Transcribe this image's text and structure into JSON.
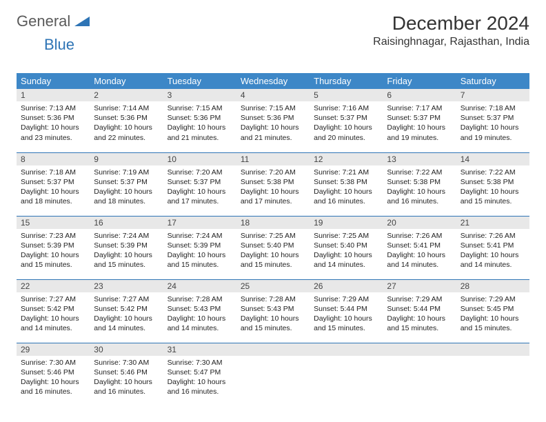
{
  "logo": {
    "part1": "General",
    "part2": "Blue"
  },
  "title": "December 2024",
  "location": "Raisinghnagar, Rajasthan, India",
  "colors": {
    "header_bg": "#3d87c7",
    "header_text": "#ffffff",
    "daynum_bg": "#e8e8e8",
    "border": "#2e74b5",
    "logo_gray": "#5a5a5a",
    "logo_blue": "#2e74b5"
  },
  "weekdays": [
    "Sunday",
    "Monday",
    "Tuesday",
    "Wednesday",
    "Thursday",
    "Friday",
    "Saturday"
  ],
  "weeks": [
    [
      {
        "n": "1",
        "sr": "Sunrise: 7:13 AM",
        "ss": "Sunset: 5:36 PM",
        "d1": "Daylight: 10 hours",
        "d2": "and 23 minutes."
      },
      {
        "n": "2",
        "sr": "Sunrise: 7:14 AM",
        "ss": "Sunset: 5:36 PM",
        "d1": "Daylight: 10 hours",
        "d2": "and 22 minutes."
      },
      {
        "n": "3",
        "sr": "Sunrise: 7:15 AM",
        "ss": "Sunset: 5:36 PM",
        "d1": "Daylight: 10 hours",
        "d2": "and 21 minutes."
      },
      {
        "n": "4",
        "sr": "Sunrise: 7:15 AM",
        "ss": "Sunset: 5:36 PM",
        "d1": "Daylight: 10 hours",
        "d2": "and 21 minutes."
      },
      {
        "n": "5",
        "sr": "Sunrise: 7:16 AM",
        "ss": "Sunset: 5:37 PM",
        "d1": "Daylight: 10 hours",
        "d2": "and 20 minutes."
      },
      {
        "n": "6",
        "sr": "Sunrise: 7:17 AM",
        "ss": "Sunset: 5:37 PM",
        "d1": "Daylight: 10 hours",
        "d2": "and 19 minutes."
      },
      {
        "n": "7",
        "sr": "Sunrise: 7:18 AM",
        "ss": "Sunset: 5:37 PM",
        "d1": "Daylight: 10 hours",
        "d2": "and 19 minutes."
      }
    ],
    [
      {
        "n": "8",
        "sr": "Sunrise: 7:18 AM",
        "ss": "Sunset: 5:37 PM",
        "d1": "Daylight: 10 hours",
        "d2": "and 18 minutes."
      },
      {
        "n": "9",
        "sr": "Sunrise: 7:19 AM",
        "ss": "Sunset: 5:37 PM",
        "d1": "Daylight: 10 hours",
        "d2": "and 18 minutes."
      },
      {
        "n": "10",
        "sr": "Sunrise: 7:20 AM",
        "ss": "Sunset: 5:37 PM",
        "d1": "Daylight: 10 hours",
        "d2": "and 17 minutes."
      },
      {
        "n": "11",
        "sr": "Sunrise: 7:20 AM",
        "ss": "Sunset: 5:38 PM",
        "d1": "Daylight: 10 hours",
        "d2": "and 17 minutes."
      },
      {
        "n": "12",
        "sr": "Sunrise: 7:21 AM",
        "ss": "Sunset: 5:38 PM",
        "d1": "Daylight: 10 hours",
        "d2": "and 16 minutes."
      },
      {
        "n": "13",
        "sr": "Sunrise: 7:22 AM",
        "ss": "Sunset: 5:38 PM",
        "d1": "Daylight: 10 hours",
        "d2": "and 16 minutes."
      },
      {
        "n": "14",
        "sr": "Sunrise: 7:22 AM",
        "ss": "Sunset: 5:38 PM",
        "d1": "Daylight: 10 hours",
        "d2": "and 15 minutes."
      }
    ],
    [
      {
        "n": "15",
        "sr": "Sunrise: 7:23 AM",
        "ss": "Sunset: 5:39 PM",
        "d1": "Daylight: 10 hours",
        "d2": "and 15 minutes."
      },
      {
        "n": "16",
        "sr": "Sunrise: 7:24 AM",
        "ss": "Sunset: 5:39 PM",
        "d1": "Daylight: 10 hours",
        "d2": "and 15 minutes."
      },
      {
        "n": "17",
        "sr": "Sunrise: 7:24 AM",
        "ss": "Sunset: 5:39 PM",
        "d1": "Daylight: 10 hours",
        "d2": "and 15 minutes."
      },
      {
        "n": "18",
        "sr": "Sunrise: 7:25 AM",
        "ss": "Sunset: 5:40 PM",
        "d1": "Daylight: 10 hours",
        "d2": "and 15 minutes."
      },
      {
        "n": "19",
        "sr": "Sunrise: 7:25 AM",
        "ss": "Sunset: 5:40 PM",
        "d1": "Daylight: 10 hours",
        "d2": "and 14 minutes."
      },
      {
        "n": "20",
        "sr": "Sunrise: 7:26 AM",
        "ss": "Sunset: 5:41 PM",
        "d1": "Daylight: 10 hours",
        "d2": "and 14 minutes."
      },
      {
        "n": "21",
        "sr": "Sunrise: 7:26 AM",
        "ss": "Sunset: 5:41 PM",
        "d1": "Daylight: 10 hours",
        "d2": "and 14 minutes."
      }
    ],
    [
      {
        "n": "22",
        "sr": "Sunrise: 7:27 AM",
        "ss": "Sunset: 5:42 PM",
        "d1": "Daylight: 10 hours",
        "d2": "and 14 minutes."
      },
      {
        "n": "23",
        "sr": "Sunrise: 7:27 AM",
        "ss": "Sunset: 5:42 PM",
        "d1": "Daylight: 10 hours",
        "d2": "and 14 minutes."
      },
      {
        "n": "24",
        "sr": "Sunrise: 7:28 AM",
        "ss": "Sunset: 5:43 PM",
        "d1": "Daylight: 10 hours",
        "d2": "and 14 minutes."
      },
      {
        "n": "25",
        "sr": "Sunrise: 7:28 AM",
        "ss": "Sunset: 5:43 PM",
        "d1": "Daylight: 10 hours",
        "d2": "and 15 minutes."
      },
      {
        "n": "26",
        "sr": "Sunrise: 7:29 AM",
        "ss": "Sunset: 5:44 PM",
        "d1": "Daylight: 10 hours",
        "d2": "and 15 minutes."
      },
      {
        "n": "27",
        "sr": "Sunrise: 7:29 AM",
        "ss": "Sunset: 5:44 PM",
        "d1": "Daylight: 10 hours",
        "d2": "and 15 minutes."
      },
      {
        "n": "28",
        "sr": "Sunrise: 7:29 AM",
        "ss": "Sunset: 5:45 PM",
        "d1": "Daylight: 10 hours",
        "d2": "and 15 minutes."
      }
    ],
    [
      {
        "n": "29",
        "sr": "Sunrise: 7:30 AM",
        "ss": "Sunset: 5:46 PM",
        "d1": "Daylight: 10 hours",
        "d2": "and 16 minutes."
      },
      {
        "n": "30",
        "sr": "Sunrise: 7:30 AM",
        "ss": "Sunset: 5:46 PM",
        "d1": "Daylight: 10 hours",
        "d2": "and 16 minutes."
      },
      {
        "n": "31",
        "sr": "Sunrise: 7:30 AM",
        "ss": "Sunset: 5:47 PM",
        "d1": "Daylight: 10 hours",
        "d2": "and 16 minutes."
      },
      {
        "n": "",
        "sr": "",
        "ss": "",
        "d1": "",
        "d2": ""
      },
      {
        "n": "",
        "sr": "",
        "ss": "",
        "d1": "",
        "d2": ""
      },
      {
        "n": "",
        "sr": "",
        "ss": "",
        "d1": "",
        "d2": ""
      },
      {
        "n": "",
        "sr": "",
        "ss": "",
        "d1": "",
        "d2": ""
      }
    ]
  ]
}
